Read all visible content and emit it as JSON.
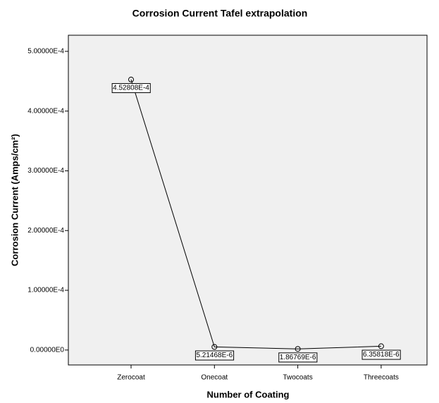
{
  "chart_data": {
    "type": "line",
    "title": "Corrosion Current Tafel extrapolation",
    "x_label": "Number of Coating",
    "y_label": "Corrosion Current (Amps/cm²)",
    "categories": [
      "Zerocoat",
      "Onecoat",
      "Twocoats",
      "Threecoats"
    ],
    "values": [
      0.000452808,
      5.21468e-06,
      1.86769e-06,
      6.35818e-06
    ],
    "value_labels": [
      "4.52808E-4",
      "5.21468E-6",
      "1.86769E-6",
      "6.35818E-6"
    ],
    "color": "#000000",
    "ylim": [
      -2.5e-05,
      0.000527
    ],
    "yticks": [
      {
        "value": 0,
        "label": "0.00000E0"
      },
      {
        "value": 0.0001,
        "label": "1.00000E-4"
      },
      {
        "value": 0.0002,
        "label": "2.00000E-4"
      },
      {
        "value": 0.0003,
        "label": "3.00000E-4"
      },
      {
        "value": 0.0004,
        "label": "4.00000E-4"
      },
      {
        "value": 0.0005,
        "label": "5.00000E-4"
      }
    ]
  }
}
